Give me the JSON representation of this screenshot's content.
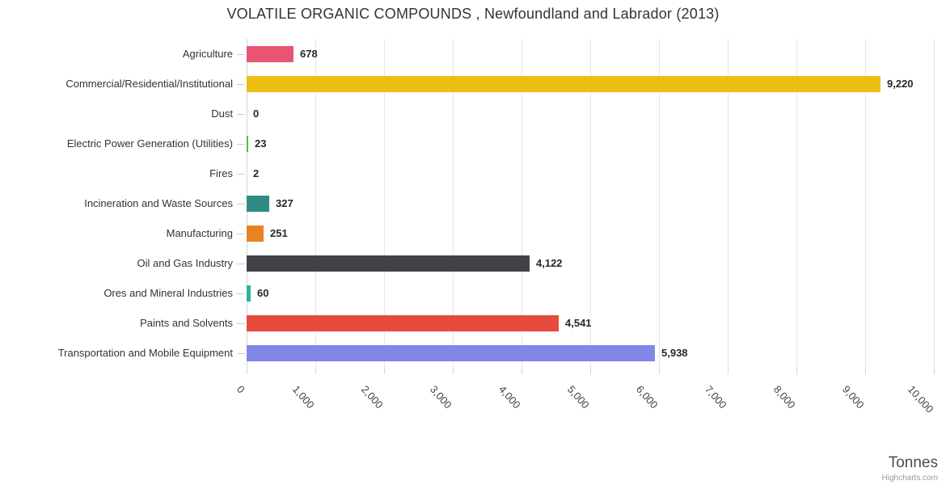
{
  "title": "VOLATILE ORGANIC COMPOUNDS , Newfoundland and Labrador (2013)",
  "credits": "Highcharts.com",
  "chart_data": {
    "type": "bar",
    "orientation": "horizontal",
    "title": "VOLATILE ORGANIC COMPOUNDS , Newfoundland and Labrador (2013)",
    "xlabel": "Tonnes",
    "ylabel": "",
    "xlim": [
      0,
      10000
    ],
    "grid": true,
    "legend": false,
    "categories": [
      "Agriculture",
      "Commercial/Residential/Institutional",
      "Dust",
      "Electric Power Generation (Utilities)",
      "Fires",
      "Incineration and Waste Sources",
      "Manufacturing",
      "Oil and Gas Industry",
      "Ores and Mineral Industries",
      "Paints and Solvents",
      "Transportation and Mobile Equipment"
    ],
    "values": [
      678,
      9220,
      0,
      23,
      2,
      327,
      251,
      4122,
      60,
      4541,
      5938
    ],
    "value_labels": [
      "678",
      "9,220",
      "0",
      "23",
      "2",
      "327",
      "251",
      "4,122",
      "60",
      "4,541",
      "5,938"
    ],
    "bar_colors": [
      "#ea5473",
      "#ebc013",
      null,
      "#57b757",
      null,
      "#2f8c85",
      "#e8831f",
      "#454148",
      "#28b794",
      "#e54c3b",
      "#8186e7"
    ],
    "x_tick_labels": [
      "0",
      "1,000",
      "2,000",
      "3,000",
      "4,000",
      "5,000",
      "6,000",
      "7,000",
      "8,000",
      "9,000",
      "10,000"
    ]
  }
}
